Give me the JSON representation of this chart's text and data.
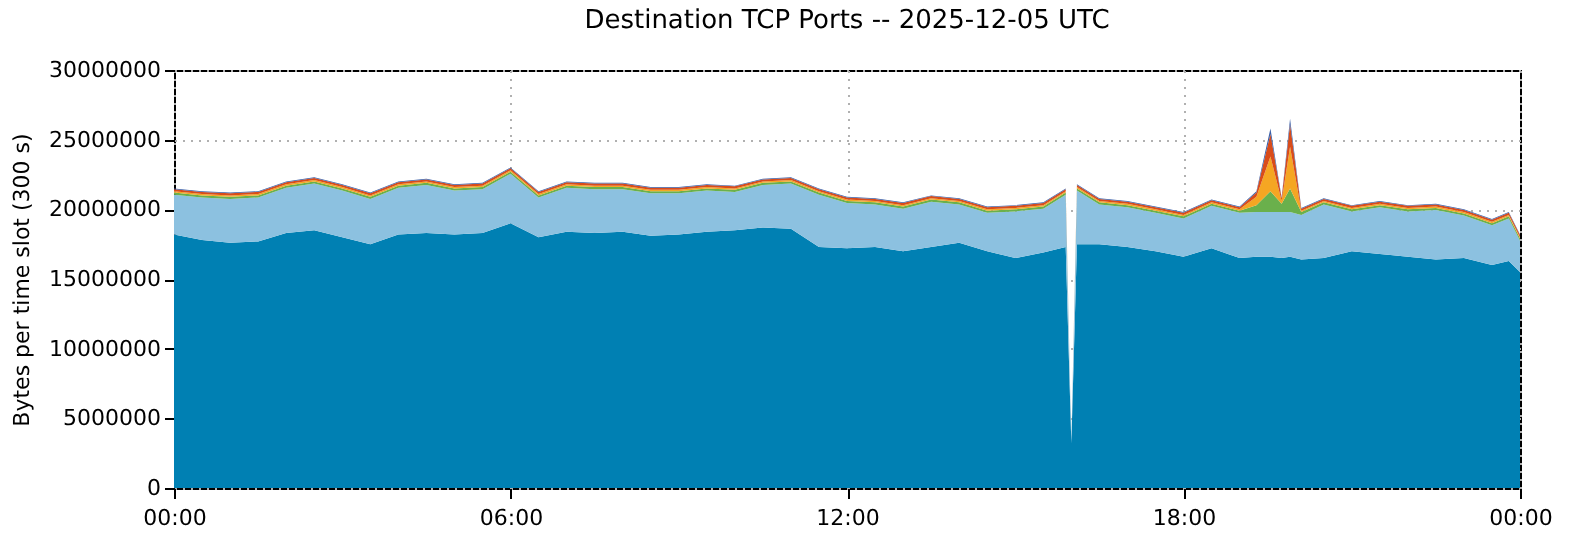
{
  "chart_data": {
    "type": "area",
    "stacked": true,
    "title": "Destination TCP Ports -- 2025-12-05 UTC",
    "ylabel": "Bytes per time slot (300 s)",
    "x": [
      0,
      0.5,
      1,
      1.5,
      2,
      2.5,
      3,
      3.5,
      4,
      4.5,
      5,
      5.5,
      6,
      6.5,
      7,
      7.5,
      8,
      8.5,
      9,
      9.5,
      10,
      10.5,
      11,
      11.5,
      12,
      12.5,
      13,
      13.5,
      14,
      14.5,
      15,
      15.5,
      15.9,
      16.0,
      16.1,
      16.5,
      17,
      17.5,
      18,
      18.5,
      19,
      19.3,
      19.55,
      19.75,
      19.9,
      20.1,
      20.5,
      21,
      21.5,
      22,
      22.5,
      23,
      23.5,
      23.8,
      24
    ],
    "series": [
      {
        "color": "#0080b3",
        "values": [
          18200000,
          17800000,
          17600000,
          17700000,
          18300000,
          18500000,
          18000000,
          17500000,
          18200000,
          18300000,
          18200000,
          18300000,
          19000000,
          18000000,
          18400000,
          18300000,
          18400000,
          18100000,
          18200000,
          18400000,
          18500000,
          18700000,
          18600000,
          17300000,
          17200000,
          17300000,
          17000000,
          17300000,
          17600000,
          17000000,
          16500000,
          16900000,
          17300000,
          3200000,
          17500000,
          17500000,
          17300000,
          17000000,
          16600000,
          17200000,
          16500000,
          16600000,
          16600000,
          16500000,
          16600000,
          16400000,
          16500000,
          17000000,
          16800000,
          16600000,
          16400000,
          16500000,
          16000000,
          16300000,
          15500000
        ]
      },
      {
        "color": "#8cc1e0",
        "values": [
          2850000,
          3050000,
          3150000,
          3150000,
          3250000,
          3350000,
          3350000,
          3250000,
          3350000,
          3450000,
          3150000,
          3150000,
          3550000,
          2850000,
          3150000,
          3150000,
          3050000,
          3050000,
          2950000,
          2950000,
          2750000,
          3050000,
          3250000,
          3750000,
          3250000,
          3050000,
          3050000,
          3250000,
          2750000,
          2750000,
          3350000,
          3150000,
          3750000,
          0,
          3850000,
          2850000,
          2850000,
          2750000,
          2750000,
          3050000,
          3250000,
          3200000,
          3200000,
          3300000,
          3200000,
          3200000,
          3850000,
          2850000,
          3350000,
          3250000,
          3550000,
          3050000,
          2850000,
          3050000,
          2250000
        ]
      },
      {
        "color": "#6ab04c",
        "values": [
          150000,
          150000,
          150000,
          150000,
          150000,
          150000,
          150000,
          150000,
          150000,
          150000,
          150000,
          150000,
          150000,
          150000,
          150000,
          150000,
          150000,
          150000,
          150000,
          150000,
          150000,
          150000,
          150000,
          150000,
          150000,
          150000,
          150000,
          150000,
          150000,
          150000,
          150000,
          150000,
          150000,
          0,
          150000,
          150000,
          150000,
          150000,
          150000,
          150000,
          150000,
          500000,
          1500000,
          600000,
          1700000,
          200000,
          150000,
          150000,
          150000,
          150000,
          150000,
          150000,
          150000,
          150000,
          150000
        ]
      },
      {
        "color": "#f5a623",
        "values": [
          100000,
          100000,
          100000,
          100000,
          100000,
          100000,
          100000,
          100000,
          100000,
          100000,
          100000,
          100000,
          100000,
          100000,
          100000,
          100000,
          100000,
          100000,
          100000,
          100000,
          100000,
          100000,
          100000,
          100000,
          100000,
          100000,
          100000,
          100000,
          100000,
          100000,
          100000,
          100000,
          100000,
          0,
          100000,
          100000,
          100000,
          100000,
          100000,
          100000,
          100000,
          600000,
          2500000,
          200000,
          3000000,
          100000,
          100000,
          100000,
          100000,
          100000,
          100000,
          100000,
          100000,
          100000,
          100000
        ]
      },
      {
        "color": "#d94c1a",
        "values": [
          150000,
          150000,
          150000,
          150000,
          150000,
          150000,
          150000,
          150000,
          150000,
          150000,
          150000,
          150000,
          150000,
          150000,
          150000,
          150000,
          150000,
          150000,
          150000,
          150000,
          150000,
          150000,
          150000,
          150000,
          150000,
          150000,
          150000,
          150000,
          150000,
          150000,
          150000,
          150000,
          150000,
          0,
          150000,
          150000,
          150000,
          150000,
          150000,
          150000,
          150000,
          300000,
          1600000,
          200000,
          1600000,
          150000,
          150000,
          150000,
          150000,
          150000,
          150000,
          150000,
          150000,
          150000,
          150000
        ]
      },
      {
        "color": "#3a5fa8",
        "values": [
          50000,
          50000,
          50000,
          50000,
          50000,
          50000,
          50000,
          50000,
          50000,
          50000,
          50000,
          50000,
          50000,
          50000,
          50000,
          50000,
          50000,
          50000,
          50000,
          50000,
          50000,
          50000,
          50000,
          50000,
          50000,
          50000,
          50000,
          50000,
          50000,
          50000,
          50000,
          50000,
          50000,
          0,
          50000,
          50000,
          50000,
          50000,
          50000,
          50000,
          50000,
          100000,
          400000,
          50000,
          400000,
          50000,
          50000,
          50000,
          50000,
          50000,
          50000,
          50000,
          50000,
          50000,
          50000
        ]
      }
    ],
    "xlim": [
      0,
      24
    ],
    "xticks": [
      {
        "value": 0,
        "label": "00:00"
      },
      {
        "value": 6,
        "label": "06:00"
      },
      {
        "value": 12,
        "label": "12:00"
      },
      {
        "value": 18,
        "label": "18:00"
      },
      {
        "value": 24,
        "label": "00:00"
      }
    ],
    "ylim": [
      0,
      30000000
    ],
    "yticks": [
      0,
      5000000,
      10000000,
      15000000,
      20000000,
      25000000,
      30000000
    ],
    "grid": true,
    "legend": false
  }
}
